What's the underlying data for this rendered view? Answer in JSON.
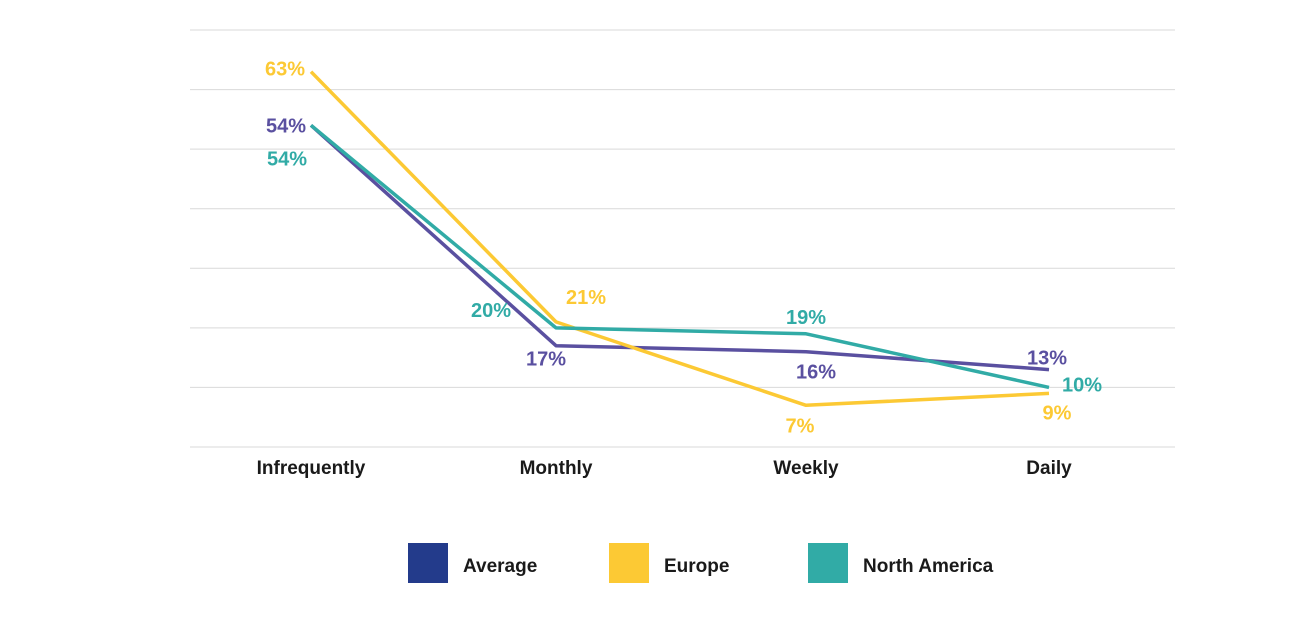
{
  "chart_data": {
    "type": "line",
    "title": "",
    "xlabel": "",
    "ylabel": "",
    "categories": [
      "Infrequently",
      "Monthly",
      "Weekly",
      "Daily"
    ],
    "ylim": [
      0,
      70
    ],
    "grid": true,
    "legend_position": "bottom",
    "series": [
      {
        "name": "Average",
        "color": "#5a50a0",
        "legend_color": "#233b8b",
        "values": [
          54,
          17,
          16,
          13
        ],
        "labels": [
          "54%",
          "17%",
          "16%",
          "13%"
        ]
      },
      {
        "name": "Europe",
        "color": "#fcc934",
        "legend_color": "#fcc934",
        "values": [
          63,
          21,
          7,
          9
        ],
        "labels": [
          "63%",
          "21%",
          "7%",
          "9%"
        ]
      },
      {
        "name": "North America",
        "color": "#31aba6",
        "legend_color": "#31aba6",
        "values": [
          54,
          20,
          19,
          10
        ],
        "labels": [
          "54%",
          "20%",
          "19%",
          "10%"
        ]
      }
    ]
  }
}
